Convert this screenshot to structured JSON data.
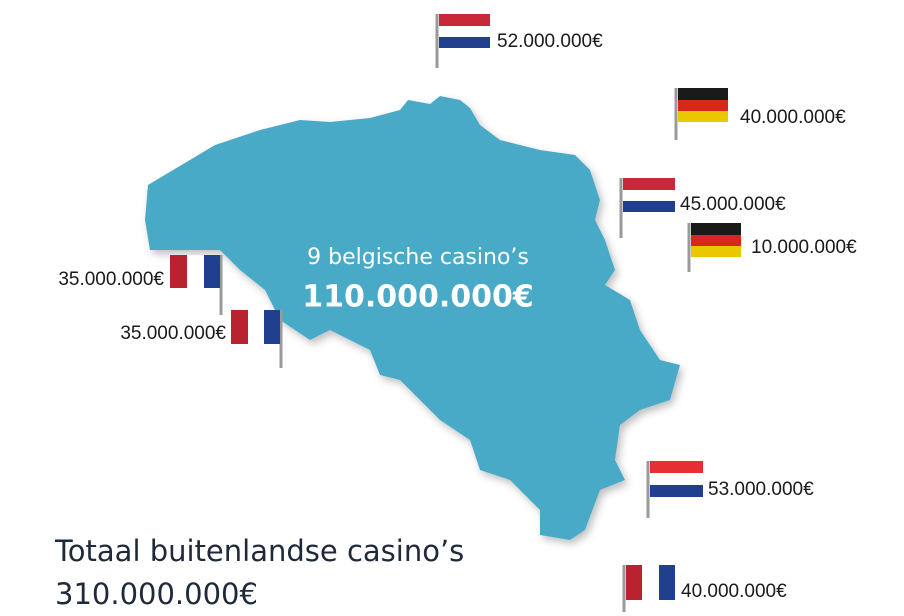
{
  "center": {
    "title": "9 belgische casino’s",
    "amount": "110.000.000€"
  },
  "total": {
    "title": "Totaal buitenlandse casino’s",
    "amount": "310.000.000€"
  },
  "flags": [
    "52.000.000€",
    "40.000.000€",
    "45.000.000€",
    "10.000.000€",
    "35.000.000€",
    "35.000.000€",
    "53.000.000€",
    "40.000.000€"
  ]
}
